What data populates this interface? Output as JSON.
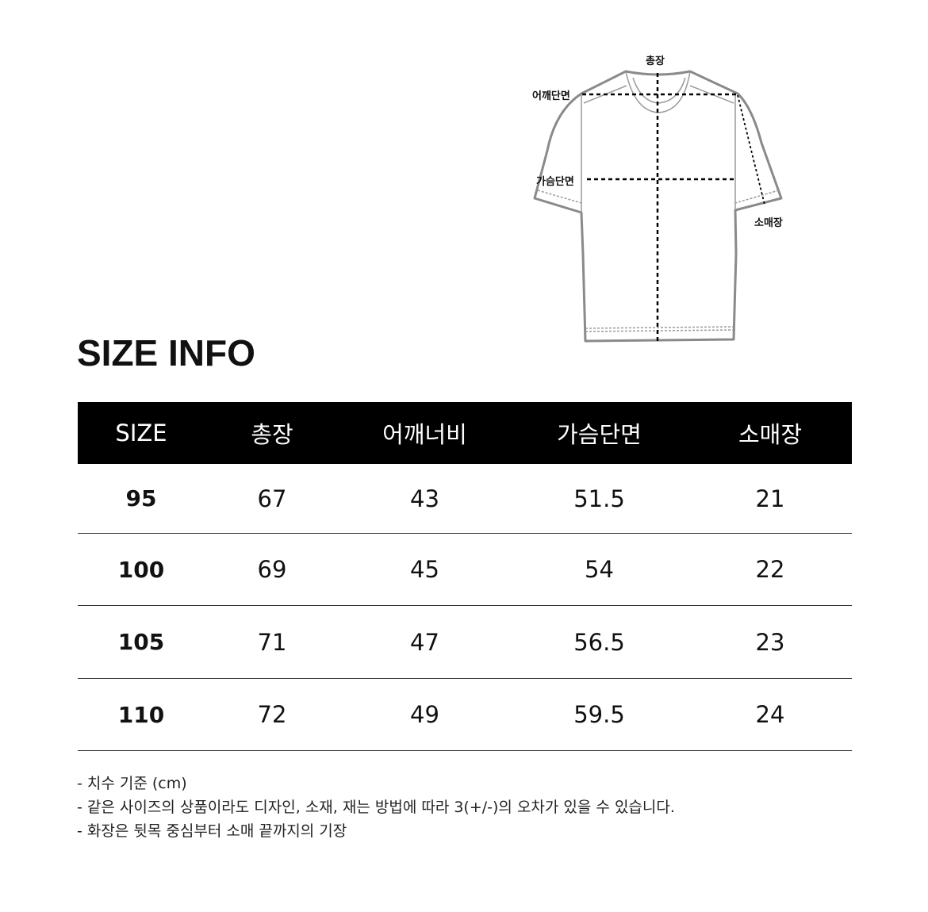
{
  "diagram": {
    "labels": {
      "total_length": "총장",
      "shoulder": "어깨단면",
      "chest": "가슴단면",
      "sleeve": "소매장"
    }
  },
  "title": "SIZE INFO",
  "table": {
    "headers": [
      "SIZE",
      "총장",
      "어깨너비",
      "가슴단면",
      "소매장"
    ],
    "rows": [
      [
        "95",
        "67",
        "43",
        "51.5",
        "21"
      ],
      [
        "100",
        "69",
        "45",
        "54",
        "22"
      ],
      [
        "105",
        "71",
        "47",
        "56.5",
        "23"
      ],
      [
        "110",
        "72",
        "49",
        "59.5",
        "24"
      ]
    ]
  },
  "notes": [
    "- 치수 기준 (cm)",
    "- 같은 사이즈의 상품이라도 디자인, 소재, 재는 방법에 따라 3(+/-)의 오차가 있을 수 있습니다.",
    "- 화장은 뒷목 중심부터 소매 끝까지의 기장"
  ]
}
